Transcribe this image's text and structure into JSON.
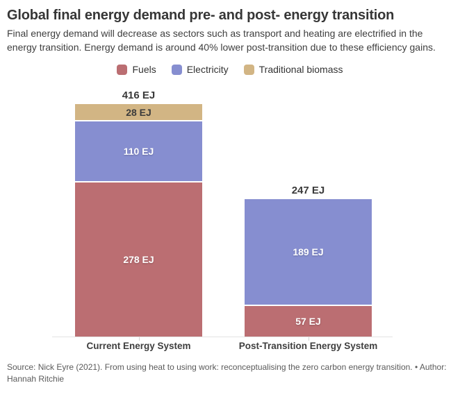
{
  "header": {
    "title": "Global final energy demand pre- and post- energy transition",
    "subtitle": "Final energy demand will decrease as sectors such as transport and heating are electrified in the energy transition. Energy demand is around 40% lower post-transition due to these efficiency gains."
  },
  "chart_data": {
    "type": "bar",
    "stacked": true,
    "unit": "EJ",
    "categories": [
      "Current Energy System",
      "Post-Transition Energy System"
    ],
    "series": [
      {
        "name": "Fuels",
        "color": "#bb6e72",
        "label_color": "#ffffff",
        "values": [
          278,
          57
        ]
      },
      {
        "name": "Electricity",
        "color": "#868ed0",
        "label_color": "#ffffff",
        "values": [
          110,
          189
        ]
      },
      {
        "name": "Traditional biomass",
        "color": "#d2b584",
        "label_color": "#3b3b3b",
        "values": [
          28,
          0
        ]
      }
    ],
    "totals": [
      416,
      247
    ],
    "total_labels": [
      "416 EJ",
      "247 EJ"
    ],
    "segment_labels": [
      [
        "278 EJ",
        "110 EJ",
        "28 EJ"
      ],
      [
        "57 EJ",
        "189 EJ"
      ]
    ],
    "ylim": [
      0,
      445
    ],
    "grid": false,
    "legend_position": "top-center",
    "axis_color": "#e2e2e2"
  },
  "footer": {
    "source": "Source: Nick Eyre (2021). From using heat to using work: reconceptualising the zero carbon energy transition. • Author: Hannah Ritchie"
  }
}
